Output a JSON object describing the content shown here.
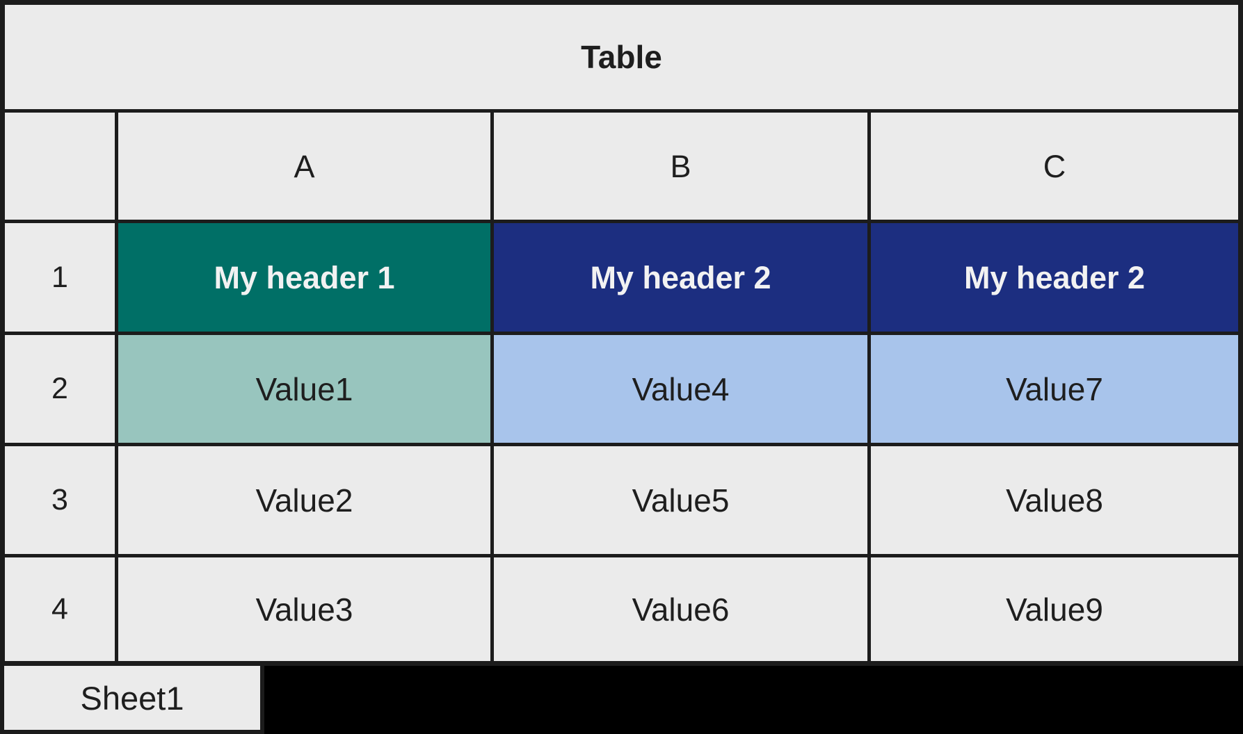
{
  "window": {
    "title": "Table"
  },
  "colors": {
    "cell_background": "#EBEBEB",
    "grid_border": "#1C1C1C",
    "bottom_fill": "#000000",
    "teal_header": "#006F66",
    "teal_light": "#98C5BE",
    "navy_header": "#1C2E80",
    "blue_light": "#A8C4EB",
    "text_dark": "#1E1E1E",
    "text_light": "#F2F2F2"
  },
  "grid": {
    "corner": "",
    "column_headers": [
      "A",
      "B",
      "C"
    ],
    "rows": [
      {
        "num": "1",
        "cells": [
          {
            "text": "My header 1",
            "bg": "#006F66",
            "fg": "#F2F2F2"
          },
          {
            "text": "My header 2",
            "bg": "#1C2E80",
            "fg": "#F2F2F2"
          },
          {
            "text": "My header 2",
            "bg": "#1C2E80",
            "fg": "#F2F2F2"
          }
        ]
      },
      {
        "num": "2",
        "cells": [
          {
            "text": "Value1",
            "bg": "#98C5BE",
            "fg": "#1E1E1E"
          },
          {
            "text": "Value4",
            "bg": "#A8C4EB",
            "fg": "#1E1E1E"
          },
          {
            "text": "Value7",
            "bg": "#A8C4EB",
            "fg": "#1E1E1E"
          }
        ]
      },
      {
        "num": "3",
        "cells": [
          {
            "text": "Value2",
            "bg": "#EBEBEB",
            "fg": "#1E1E1E"
          },
          {
            "text": "Value5",
            "bg": "#EBEBEB",
            "fg": "#1E1E1E"
          },
          {
            "text": "Value8",
            "bg": "#EBEBEB",
            "fg": "#1E1E1E"
          }
        ]
      },
      {
        "num": "4",
        "cells": [
          {
            "text": "Value3",
            "bg": "#EBEBEB",
            "fg": "#1E1E1E"
          },
          {
            "text": "Value6",
            "bg": "#EBEBEB",
            "fg": "#1E1E1E"
          },
          {
            "text": "Value9",
            "bg": "#EBEBEB",
            "fg": "#1E1E1E"
          }
        ]
      }
    ]
  },
  "footer": {
    "sheet_tab": "Sheet1"
  }
}
